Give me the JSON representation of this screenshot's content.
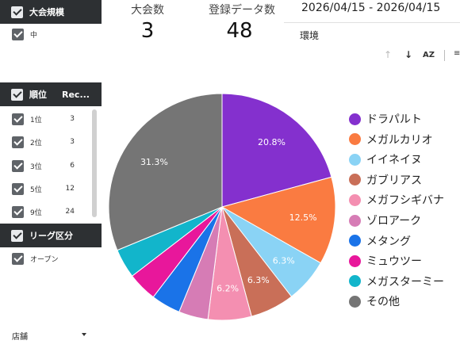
{
  "filters": {
    "size_section": {
      "title": "大会規模",
      "items": [
        {
          "label": "中"
        }
      ]
    },
    "rank_section": {
      "title": "順位",
      "column": "Rec...",
      "items": [
        {
          "label": "1位",
          "count": "3"
        },
        {
          "label": "2位",
          "count": "3"
        },
        {
          "label": "3位",
          "count": "6"
        },
        {
          "label": "5位",
          "count": "12"
        },
        {
          "label": "9位",
          "count": "24"
        }
      ]
    },
    "league_section": {
      "title": "リーグ区分",
      "items": [
        {
          "label": "オープン"
        }
      ]
    },
    "store_dropdown": {
      "label": "店舗"
    }
  },
  "metrics": {
    "tournaments": {
      "label": "大会数",
      "value": "3"
    },
    "records": {
      "label": "登録データ数",
      "value": "48"
    }
  },
  "date_range": "2026/04/15 - 2026/04/15",
  "environment_label": "環境",
  "toolbar": {
    "sort_up_icon": "arrow-up-icon",
    "sort_down_icon": "arrow-down-icon",
    "sort_az_label": "AZ"
  },
  "chart_data": {
    "type": "pie",
    "title": "",
    "legend_position": "right",
    "slices": [
      {
        "name": "ドラパルト",
        "value": 20.8,
        "label": "20.8%",
        "color": "#8430ce"
      },
      {
        "name": "メガルカリオ",
        "value": 12.5,
        "label": "12.5%",
        "color": "#fa7b41"
      },
      {
        "name": "イイネイヌ",
        "value": 6.3,
        "label": "6.3%",
        "color": "#8ad3f5"
      },
      {
        "name": "ガブリアス",
        "value": 6.3,
        "label": "6.3%",
        "color": "#c96f58"
      },
      {
        "name": "メガフシギバナ",
        "value": 6.2,
        "label": "6.2%",
        "color": "#f48fb1"
      },
      {
        "name": "ゾロアーク",
        "value": 4.2,
        "label": "",
        "color": "#d67cb5"
      },
      {
        "name": "メタング",
        "value": 4.2,
        "label": "",
        "color": "#1a73e8"
      },
      {
        "name": "ミュウツー",
        "value": 4.2,
        "label": "",
        "color": "#e8179b"
      },
      {
        "name": "メガスターミー",
        "value": 4.2,
        "label": "",
        "color": "#12b5cb"
      },
      {
        "name": "その他",
        "value": 31.3,
        "label": "31.3%",
        "color": "#757575"
      }
    ]
  }
}
